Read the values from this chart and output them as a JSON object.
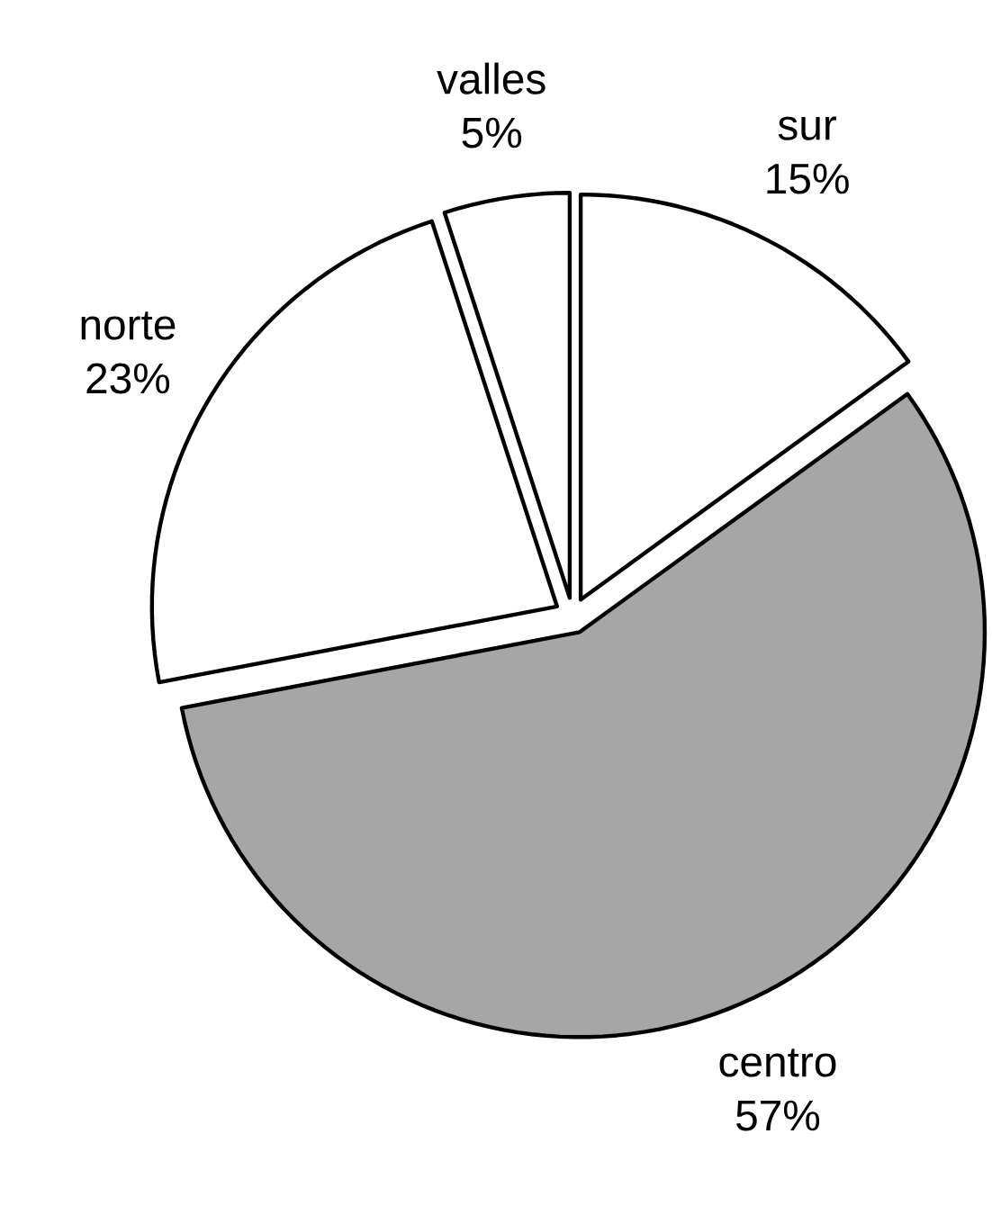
{
  "chart_data": {
    "type": "pie",
    "categories": [
      "sur",
      "centro",
      "norte",
      "valles"
    ],
    "values": [
      15,
      57,
      23,
      5
    ],
    "value_labels": [
      "15%",
      "57%",
      "23%",
      "5%"
    ],
    "colors": [
      "#ffffff",
      "#a6a6a6",
      "#ffffff",
      "#ffffff"
    ]
  }
}
